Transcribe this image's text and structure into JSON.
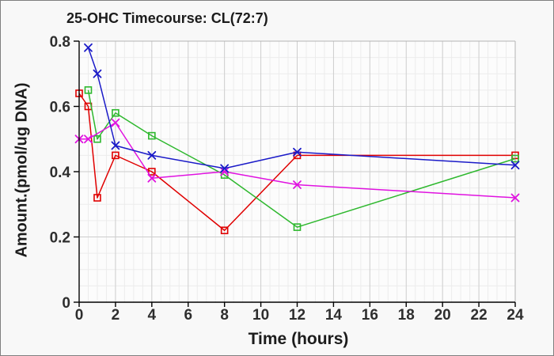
{
  "chart_data": {
    "type": "line",
    "title": "25-OHC Timecourse: CL(72:7)",
    "xlabel": "Time (hours)",
    "ylabel": "Amount.(pmol/ug DNA)",
    "xlim": [
      0,
      24
    ],
    "ylim": [
      0,
      0.8
    ],
    "x_tick_labels": [
      "0",
      "2",
      "4",
      "6",
      "8",
      "10",
      "12",
      "14",
      "16",
      "18",
      "20",
      "22",
      "24"
    ],
    "y_tick_labels": [
      "0",
      "0.2",
      "0.4",
      "0.6",
      "0.8"
    ],
    "x_minor_step": 0.5,
    "y_minor_step": 0.05,
    "grid": "on",
    "legend": "none",
    "series": [
      {
        "name": "red",
        "color": "#e00000",
        "marker": "square",
        "points": [
          [
            0,
            0.64
          ],
          [
            0.5,
            0.6
          ],
          [
            1,
            0.32
          ],
          [
            2,
            0.45
          ],
          [
            4,
            0.4
          ],
          [
            8,
            0.22
          ],
          [
            12,
            0.45
          ],
          [
            24,
            0.45
          ]
        ]
      },
      {
        "name": "green",
        "color": "#2eb82e",
        "marker": "square",
        "points": [
          [
            0.5,
            0.65
          ],
          [
            1,
            0.5
          ],
          [
            2,
            0.58
          ],
          [
            4,
            0.51
          ],
          [
            8,
            0.39
          ],
          [
            12,
            0.23
          ],
          [
            24,
            0.44
          ]
        ]
      },
      {
        "name": "magenta",
        "color": "#e012e0",
        "marker": "x",
        "points": [
          [
            0,
            0.5
          ],
          [
            0.5,
            0.5
          ],
          [
            2,
            0.55
          ],
          [
            4,
            0.38
          ],
          [
            8,
            0.4
          ],
          [
            12,
            0.36
          ],
          [
            24,
            0.32
          ]
        ]
      },
      {
        "name": "blue",
        "color": "#1a1ac8",
        "marker": "x",
        "points": [
          [
            0.5,
            0.78
          ],
          [
            1,
            0.7
          ],
          [
            2,
            0.48
          ],
          [
            4,
            0.45
          ],
          [
            8,
            0.41
          ],
          [
            12,
            0.46
          ],
          [
            24,
            0.42
          ]
        ]
      }
    ],
    "colors": {
      "figure_background": "#f8f8f8",
      "plot_background": "#fcfcfc",
      "axis": "#000000",
      "plot_border": "#b4b4b4",
      "grid_major": "#cdcdcd",
      "grid_minor": "#ececec",
      "tick_label": "#2e2e2e",
      "title_text": "#1c1c1c",
      "figure_border": "#7f7f7f"
    }
  }
}
